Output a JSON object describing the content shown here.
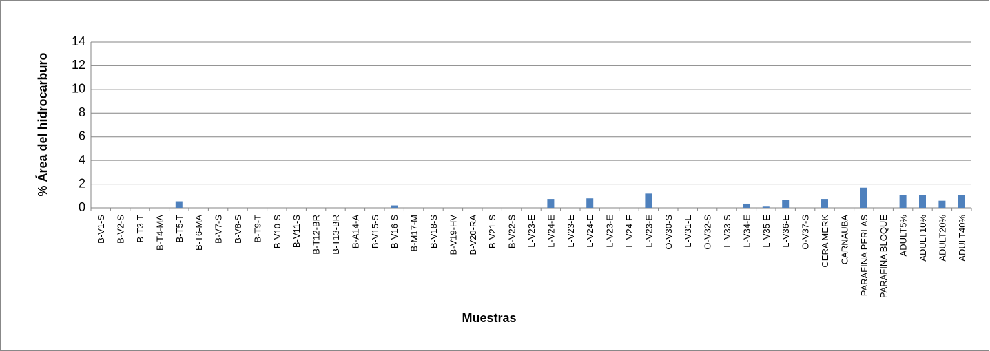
{
  "chart_data": {
    "type": "bar",
    "ylabel": "% Área del hidrocarburo",
    "xlabel": "Muestras",
    "categories": [
      "B-V1-S",
      "B-V2-S",
      "B-T3-T",
      "B-T4-MA",
      "B-T5-T",
      "B-T6-MA",
      "B-V7-S",
      "B-V8-S",
      "B-T9-T",
      "B-V10-S",
      "B-V11-S",
      "B-T12-BR",
      "B-T13-BR",
      "B-A14-A",
      "B-V15-S",
      "B-V16-S",
      "B-M17-M",
      "B-V18-S",
      "B-V19-HV",
      "B-V20-RA",
      "B-V21-S",
      "B-V22-S",
      "L-V23-E",
      "L-V24-E",
      "L-V23-E",
      "L-V24-E",
      "L-V23-E",
      "L-V24-E",
      "L-V23-E",
      "O-V30-S",
      "L-V31-E",
      "O-V32-S",
      "L-V33-S",
      "L-V34-E",
      "L-V35-E",
      "L-V36-E",
      "O-V37-S",
      "CERA MERK",
      "CARNAUBA",
      "PARAFINA PERLAS",
      "PARAFINA BLOQUE",
      "ADULT5%",
      "ADULT10%",
      "ADULT20%",
      "ADULT40%"
    ],
    "values": [
      0,
      0,
      0,
      0,
      0.55,
      0,
      0,
      0,
      0,
      0,
      0,
      0,
      0,
      0,
      0,
      0.2,
      0,
      0,
      0,
      0,
      0,
      0,
      0,
      0.75,
      0,
      0.8,
      0,
      0,
      1.2,
      0,
      0,
      0,
      0,
      0.35,
      0.1,
      0.65,
      0,
      0.75,
      0,
      1.7,
      0,
      1.05,
      1.05,
      0.6,
      1.05
    ],
    "color": "#4f81bd",
    "ylim": [
      0,
      14
    ],
    "yticks": [
      0,
      2,
      4,
      6,
      8,
      10,
      12,
      14
    ],
    "grid": true
  }
}
